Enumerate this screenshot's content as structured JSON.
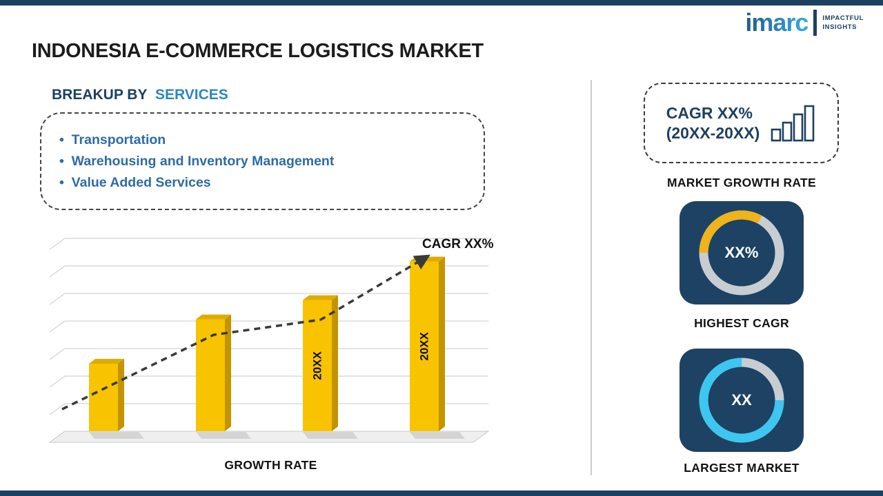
{
  "page": {
    "title": "INDONESIA E-COMMERCE LOGISTICS MARKET"
  },
  "logo": {
    "brand": "imarc",
    "tagline_line1": "IMPACTFUL",
    "tagline_line2": "INSIGHTS"
  },
  "breakup": {
    "heading_prefix": "BREAKUP BY",
    "heading_accent": "SERVICES",
    "items": [
      "Transportation",
      "Warehousing and Inventory Management",
      "Value Added Services"
    ]
  },
  "chart_data": {
    "type": "bar",
    "categories": [
      "",
      "",
      "20XX",
      "20XX"
    ],
    "values": [
      35,
      58,
      68,
      88
    ],
    "bar_labels": [
      "",
      "",
      "20XX",
      "20XX"
    ],
    "bar_color": "#f8c301",
    "title": "",
    "xlabel": "GROWTH RATE",
    "ylabel": "",
    "ylim": [
      0,
      100
    ],
    "gridlines": true,
    "annotation": "CAGR XX%",
    "trend": "increasing dashed arrow"
  },
  "sidebar": {
    "cagr_box": {
      "line1": "CAGR XX%",
      "line2": "(20XX-20XX)"
    },
    "market_growth_label": "MARKET GROWTH RATE",
    "highest_cagr": {
      "value": "XX%",
      "label": "HIGHEST CAGR",
      "accent": "#f0b31c",
      "fraction": 0.33,
      "rotate": 180
    },
    "largest_market": {
      "value": "XX",
      "label": "LARGEST MARKET",
      "accent": "#3cc6f0",
      "fraction": 0.75,
      "rotate": 0
    }
  },
  "colors": {
    "navy": "#1d4061",
    "card_navy": "#1d4264",
    "heading_accent": "#2e86c1",
    "list_blue": "#2e6ca4",
    "bar_yellow": "#f8c301",
    "ring_gray": "#c8cdd2",
    "divider": "#cccccc"
  }
}
